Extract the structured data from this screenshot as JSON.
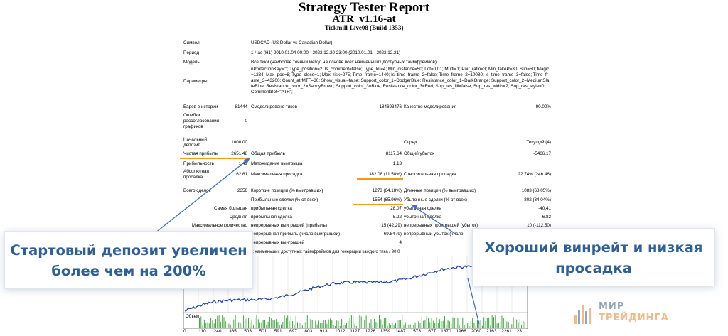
{
  "header": {
    "title": "Strategy Tester Report",
    "subtitle": "ATR_v1.16-at",
    "server": "Tickmill-Live08 (Build 1353)"
  },
  "info": {
    "symbol_label": "Символ",
    "symbol_value": "USDCAD (US Dollar vs Canadian Dollar)",
    "period_label": "Период",
    "period_value": "1 Час (H1) 2010.01.04 00:00 - 2022.12.20 23:00 (2010.01.01 - 2022.12.21)",
    "model_label": "Модель",
    "model_value": "Все тики (наиболее точный метод на основе всех наименьших доступных таймфреймов)",
    "params_label": "Параметры",
    "params_value": "nProtectionKey=\"\"; Type_position=2; Is_comment=false; Type_lot=4; Min_distance=50; Lot=0.01; Multi=1; Pair_ratio=3; Min_takeP=30; Slip=50; Magic=1234; Max_pos=8; Type_close=1; Max_risk=275; Time_frame=1440; Is_time_frame_2=false; Time_frame_2=10080; Is_time_frame_3=false; Time_frame_3=43200; Count_atrMTF=30; Show_visual=false; Support_color_1=DodgerBlue; Resistance_color_1=DarkOrange; Support_color_2=MediumSlateBlue; Resistance_color_2=SandyBrown; Support_color_3=Blue; Resistance_color_3=Red; Sup_res_fill=false; Sup_res_width=2; Sup_res_style=0; CommentBot=\"ATR\";"
  },
  "stats": {
    "bars_label": "Баров в истории",
    "bars_value": "81444",
    "ticks_label": "Смоделировано тиков",
    "ticks_value": "184693476",
    "quality_label": "Качество моделирования",
    "quality_value": "90.00%",
    "errors_label": "Ошибки рассогласования графиков",
    "errors_value": "0",
    "deposit_label": "Начальный депозит",
    "deposit_value": "1000.00",
    "spread_label": "Спред",
    "spread_value": "Текущий (4)",
    "net_label": "Чистая прибыль",
    "net_value": "2651.48",
    "gross_profit_label": "Общая прибыль",
    "gross_profit_value": "8117.64",
    "gross_loss_label": "Общий убыток",
    "gross_loss_value": "-5466.17",
    "pf_label": "Прибыльность",
    "pf_value": "1.49",
    "exp_label": "Матожидание выигрыша",
    "exp_value": "1.13",
    "abs_dd_label": "Абсолютная просадка",
    "abs_dd_value": "162.61",
    "max_dd_label": "Максимальная просадка",
    "max_dd_value": "382.08 (11.58%)",
    "rel_dd_label": "Относительная просадка",
    "rel_dd_value": "22.74% (246.46)",
    "trades_label": "Всего сделок",
    "trades_value": "2356",
    "short_label": "Короткие позиции (% выигравших)",
    "short_value": "1273 (64.18%)",
    "long_label": "Длинные позиции (% выигравших)",
    "long_value": "1083 (68.05%)",
    "prof_trades_label": "Прибыльные сделки (% от всех)",
    "prof_trades_value": "1554 (65.96%)",
    "loss_trades_label": "Убыточные сделки (% от всех)",
    "loss_trades_value": "802 (34.04%)",
    "largest_label": "Самая большая",
    "largest_profit_label": "прибыльная сделка",
    "largest_profit_value": "28.07",
    "largest_loss_label": "убыточная сделка",
    "largest_loss_value": "-40.41",
    "average_label": "Средняя",
    "average_profit_label": "прибыльная сделка",
    "average_profit_value": "5.22",
    "average_loss_label": "убыточная сделка",
    "average_loss_value": "-6.82",
    "maxcount_label": "Максимальное количество",
    "maxcons_wins_label": "непрерывных выигрышей (прибыль)",
    "maxcons_wins_value": "15 (42.29)",
    "maxcons_losses_label": "непрерывных проигрышей (убыток)",
    "maxcons_losses_value": "10 (-112.50)",
    "maxprofit_label": "непрерывная прибыль (число выигрышей)",
    "maxprofit_value": "69.84 (9)",
    "maxloss_label": "непрерывный убыток (число",
    "avgcons_label": "непрерывных выигрышей",
    "avgcons_value": "4"
  },
  "chart": {
    "caption": "е точный метод на основе всех наименьших доступных таймфреймов для генерации каждого тика / 90.0",
    "volume_label": "Объем",
    "x_ticks": [
      "0",
      "110",
      "240",
      "365",
      "503",
      "501",
      "591",
      "697",
      "803",
      "913",
      "1012",
      "1127",
      "1226",
      "1359",
      "1487",
      "1573",
      "1677",
      "1870",
      "1968",
      "2060",
      "2163",
      "2261",
      "23"
    ]
  },
  "callouts": {
    "left": "Стартовый депозит увеличен более чем на 200%",
    "right": "Хороший винрейт и низкая просадка"
  },
  "logo": {
    "line1": "МИР",
    "line2": "ТРЕЙДИНГА",
    "color1": "#8fa6bf",
    "color2": "#f2b98a"
  }
}
